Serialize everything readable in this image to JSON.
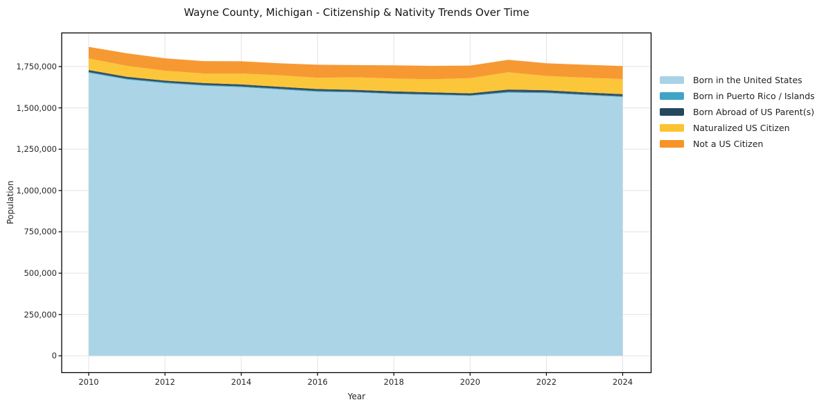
{
  "title": "Wayne County, Michigan - Citizenship & Nativity Trends Over Time",
  "chart_data": {
    "type": "area",
    "stacked": true,
    "title": "Wayne County, Michigan - Citizenship & Nativity Trends Over Time",
    "xlabel": "Year",
    "ylabel": "Population",
    "grid": true,
    "legend_position": "right",
    "x": [
      2010,
      2011,
      2012,
      2013,
      2014,
      2015,
      2016,
      2017,
      2018,
      2019,
      2020,
      2021,
      2022,
      2023,
      2024
    ],
    "series": [
      {
        "name": "Born in the United States",
        "color": "#a8d2e6",
        "values": [
          1712000,
          1671000,
          1649000,
          1634000,
          1625000,
          1611000,
          1597000,
          1593000,
          1583000,
          1578000,
          1572000,
          1592000,
          1589000,
          1577000,
          1566000
        ]
      },
      {
        "name": "Born in Puerto Rico / Islands",
        "color": "#41a4c4",
        "values": [
          5000,
          5000,
          5000,
          5000,
          5000,
          5000,
          5000,
          4000,
          4000,
          4000,
          4000,
          5000,
          4000,
          4000,
          4000
        ]
      },
      {
        "name": "Born Abroad of US Parent(s)",
        "color": "#26485d",
        "values": [
          12000,
          12000,
          11000,
          11000,
          12000,
          12000,
          12000,
          12000,
          13000,
          12000,
          12000,
          14000,
          14000,
          13000,
          13000
        ]
      },
      {
        "name": "Naturalized US Citizen",
        "color": "#fcc330",
        "values": [
          70000,
          66000,
          60000,
          58000,
          66000,
          69000,
          68000,
          76000,
          78000,
          79000,
          92000,
          104000,
          86000,
          89000,
          91000
        ]
      },
      {
        "name": "Not a US Citizen",
        "color": "#f79428",
        "values": [
          70000,
          76000,
          75000,
          75000,
          74000,
          73000,
          79000,
          74000,
          79000,
          81000,
          76000,
          76000,
          77000,
          78000,
          79000
        ]
      }
    ],
    "xticks": {
      "values": [
        2010,
        2012,
        2014,
        2016,
        2018,
        2020,
        2022,
        2024
      ],
      "labels": [
        "2010",
        "2012",
        "2014",
        "2016",
        "2018",
        "2020",
        "2022",
        "2024"
      ]
    },
    "yticks": {
      "values": [
        0,
        250000,
        500000,
        750000,
        1000000,
        1250000,
        1500000,
        1750000
      ],
      "labels": [
        "0",
        "250,000",
        "500,000",
        "750,000",
        "1,000,000",
        "1,250,000",
        "1,500,000",
        "1,750,000"
      ]
    },
    "ylim": [
      -97000,
      1953000
    ],
    "xlim": [
      2009.3,
      2024.74
    ]
  },
  "colors": {
    "background": "#ffffff",
    "grid": "#e3e3e3",
    "spine": "#000000",
    "text": "#262626"
  }
}
